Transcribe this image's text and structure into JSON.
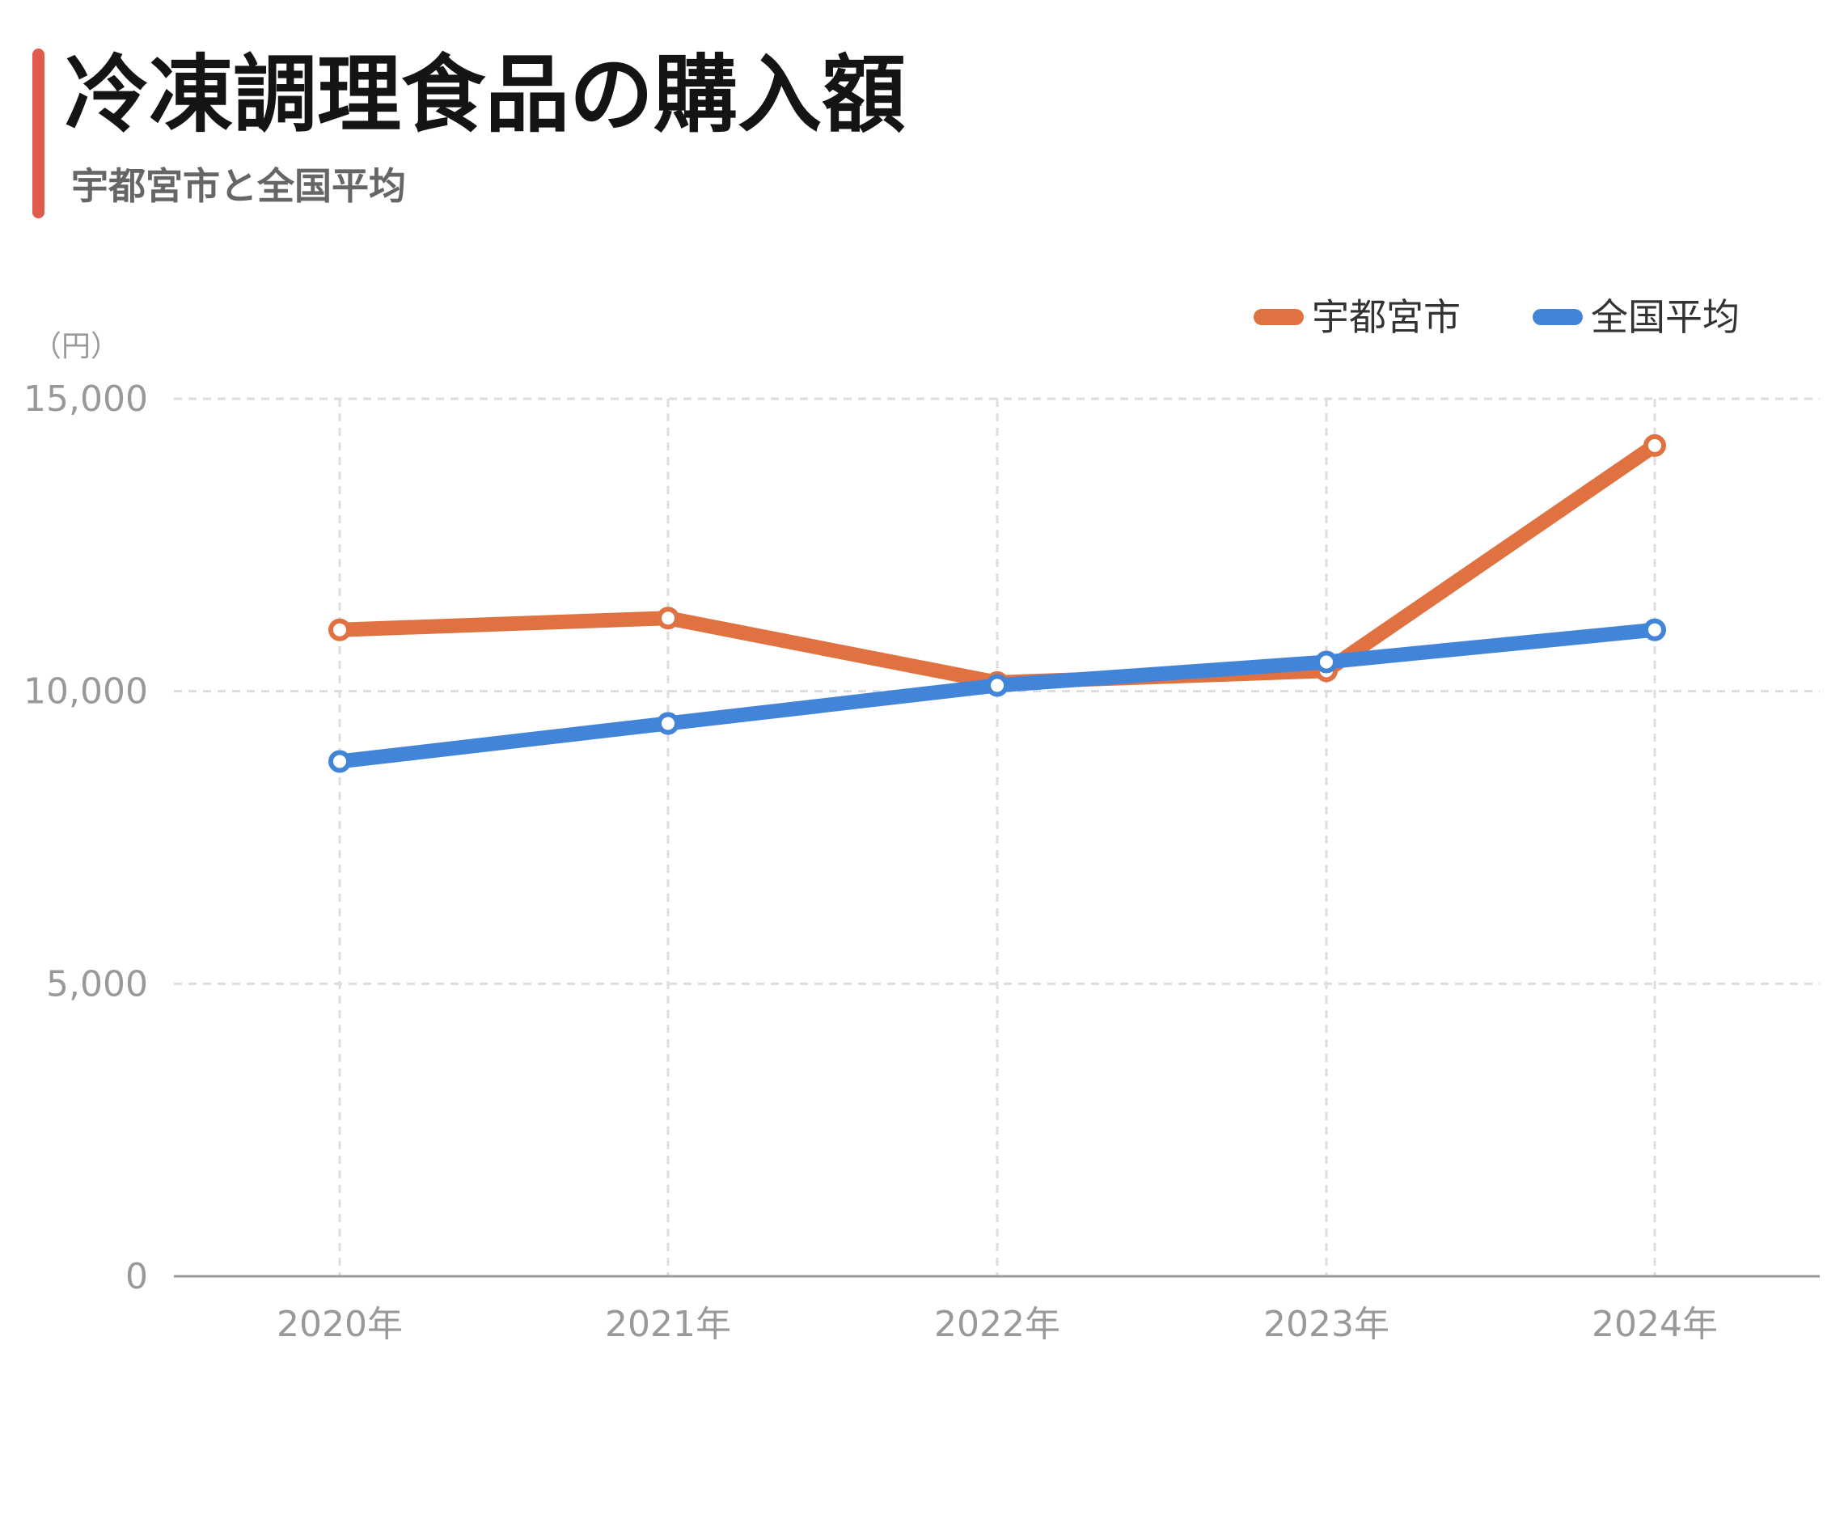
{
  "header": {
    "title": "冷凍調理食品の購入額",
    "subtitle": "宇都宮市と全国平均"
  },
  "colors": {
    "accent": "#e05a4e",
    "series_utsunomiya": "#e07241",
    "series_national": "#4285d8"
  },
  "chart_data": {
    "type": "line",
    "categories": [
      "2020年",
      "2021年",
      "2022年",
      "2023年",
      "2024年"
    ],
    "series": [
      {
        "name": "宇都宮市",
        "color": "#e07241",
        "values": [
          11050,
          11250,
          10150,
          10350,
          14200
        ]
      },
      {
        "name": "全国平均",
        "color": "#4285d8",
        "values": [
          8800,
          9450,
          10100,
          10500,
          11050
        ]
      }
    ],
    "y_unit": "（円）",
    "y_ticks": [
      0,
      5000,
      10000,
      15000
    ],
    "y_tick_labels": [
      "0",
      "5,000",
      "10,000",
      "15,000"
    ],
    "ylim": [
      0,
      15000
    ],
    "grid": true,
    "legend_position": "top-right"
  }
}
